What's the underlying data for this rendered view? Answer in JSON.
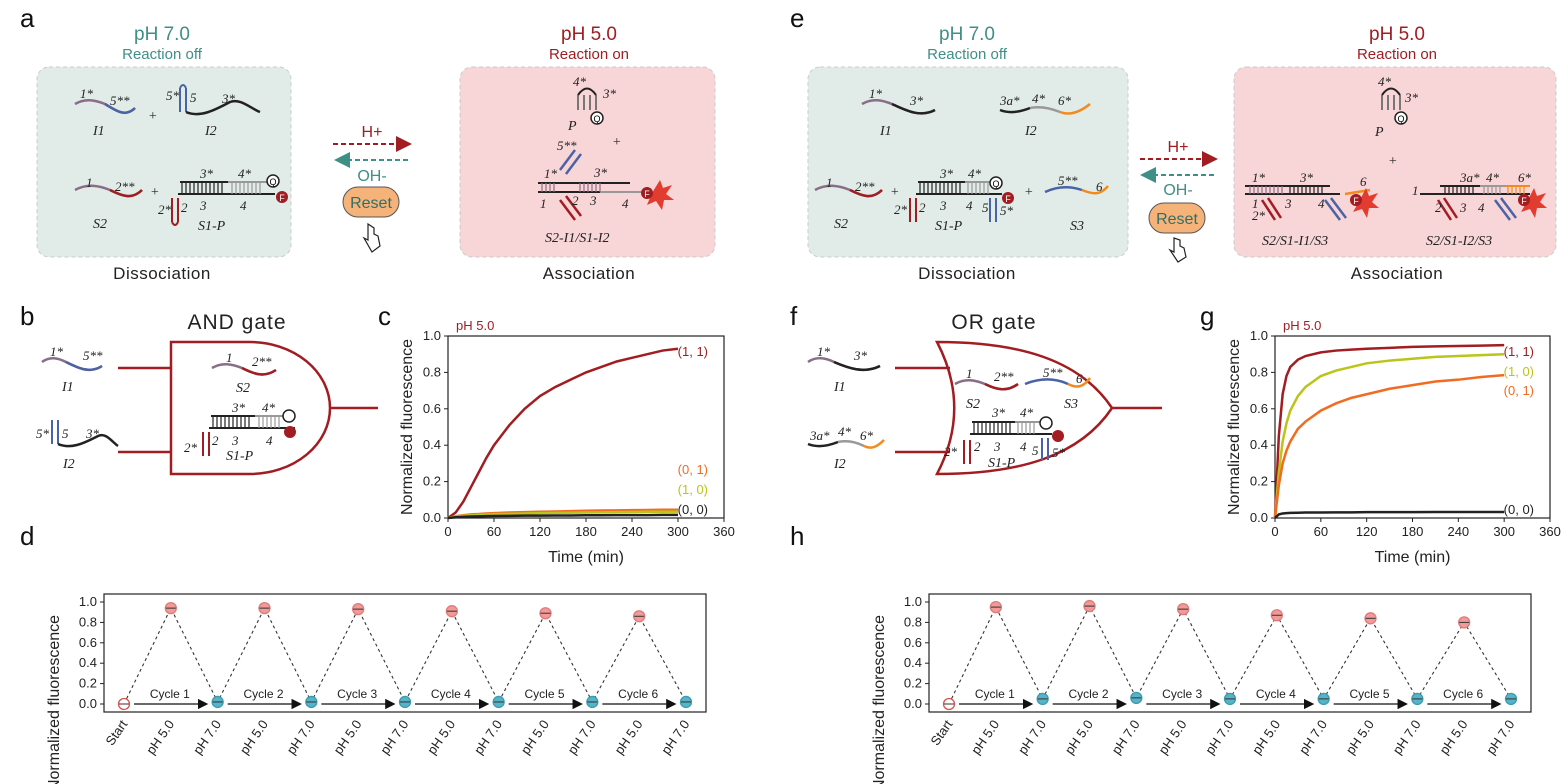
{
  "panels": {
    "a": "a",
    "b": "b",
    "c": "c",
    "d": "d",
    "e": "e",
    "f": "f",
    "g": "g",
    "h": "h"
  },
  "scheme_left": {
    "off_ph": "pH 7.0",
    "off_state": "Reaction off",
    "on_ph": "pH 5.0",
    "on_state": "Reaction on",
    "h_plus": "H+",
    "oh_minus": "OH-",
    "reset": "Reset",
    "dissociation": "Dissociation",
    "association": "Association",
    "strands": {
      "i1": "I1",
      "i2": "I2",
      "s2": "S2",
      "s1p": "S1-P",
      "p": "P",
      "complex": "S2-I1/S1-I2"
    },
    "domains": {
      "d1s": "1*",
      "d5ss": "5**",
      "d5s": "5*",
      "d5": "5",
      "d3s": "3*",
      "d1": "1",
      "d2ss": "2**",
      "d2s": "2*",
      "d2": "2",
      "d3": "3",
      "d4s": "4*",
      "d4": "4",
      "q": "Q",
      "f": "F",
      "plus": "+"
    }
  },
  "scheme_right": {
    "off_ph": "pH 7.0",
    "off_state": "Reaction off",
    "on_ph": "pH 5.0",
    "on_state": "Reaction on",
    "h_plus": "H+",
    "oh_minus": "OH-",
    "reset": "Reset",
    "dissociation": "Dissociation",
    "association": "Association",
    "strands": {
      "i1": "I1",
      "i2": "I2",
      "s2": "S2",
      "s1p": "S1-P",
      "s3": "S3",
      "p": "P",
      "complex1": "S2/S1-I1/S3",
      "complex2": "S2/S1-I2/S3"
    },
    "domains": {
      "d1s": "1*",
      "d3s": "3*",
      "d3as": "3a*",
      "d4s": "4*",
      "d6s": "6*",
      "d1": "1",
      "d2ss": "2**",
      "d2s": "2*",
      "d2": "2",
      "d3": "3",
      "d4": "4",
      "d5": "5",
      "d5s": "5*",
      "d5ss": "5**",
      "d6": "6",
      "q": "Q",
      "f": "F",
      "plus": "+"
    }
  },
  "gate_and": {
    "title": "AND gate",
    "i1": "I1",
    "i2": "I2",
    "s2": "S2",
    "s1p": "S1-P",
    "d1s": "1*",
    "d5ss": "5**",
    "d5s": "5*",
    "d5": "5",
    "d3s": "3*",
    "d1": "1",
    "d2ss": "2**",
    "d4s": "4*",
    "d2s": "2*",
    "d2": "2",
    "d3": "3",
    "d4": "4"
  },
  "gate_or": {
    "title": "OR gate",
    "i1": "I1",
    "i2": "I2",
    "s2": "S2",
    "s3": "S3",
    "s1p": "S1-P",
    "d1s": "1*",
    "d3s": "3*",
    "d3as": "3a*",
    "d4s": "4*",
    "d6s": "6*",
    "d1": "1",
    "d2ss": "2**",
    "d5ss": "5**",
    "d6": "6",
    "d2s": "2*",
    "d2": "2",
    "d3": "3",
    "d4": "4",
    "d5": "5",
    "d5s": "5*"
  },
  "colors": {
    "red": "#a11d21",
    "green": "#3e8f85",
    "teal_box": "#e1ece9",
    "pink_box": "#f8d5d6",
    "series_11": "#a11d21",
    "series_10": "#bcc41a",
    "series_01": "#f26b21",
    "series_00": "#222222",
    "dot_red": "#f19a9a",
    "dot_blue": "#56b4c8"
  },
  "chart_data": [
    {
      "id": "c",
      "type": "line",
      "annotation": "pH 5.0",
      "xlabel": "Time (min)",
      "ylabel": "Normalized fluorescence",
      "xlim": [
        0,
        360
      ],
      "ylim": [
        0,
        1.0
      ],
      "xticks": [
        0,
        60,
        120,
        180,
        240,
        300,
        360
      ],
      "yticks": [
        0.0,
        0.2,
        0.4,
        0.6,
        0.8,
        1.0
      ],
      "x": [
        0,
        10,
        20,
        30,
        40,
        50,
        60,
        80,
        100,
        120,
        140,
        160,
        180,
        200,
        220,
        240,
        260,
        280,
        300
      ],
      "series": [
        {
          "name": "(1, 1)",
          "color": "#a11d21",
          "values": [
            0.0,
            0.03,
            0.09,
            0.17,
            0.25,
            0.33,
            0.4,
            0.51,
            0.6,
            0.67,
            0.72,
            0.76,
            0.8,
            0.83,
            0.86,
            0.88,
            0.9,
            0.92,
            0.93
          ]
        },
        {
          "name": "(0, 1)",
          "color": "#f26b21",
          "values": [
            0.0,
            0.01,
            0.015,
            0.02,
            0.022,
            0.025,
            0.027,
            0.03,
            0.032,
            0.034,
            0.036,
            0.038,
            0.04,
            0.041,
            0.042,
            0.043,
            0.044,
            0.045,
            0.045
          ]
        },
        {
          "name": "(1, 0)",
          "color": "#bcc41a",
          "values": [
            0.0,
            0.008,
            0.012,
            0.015,
            0.017,
            0.019,
            0.021,
            0.023,
            0.025,
            0.027,
            0.028,
            0.029,
            0.03,
            0.031,
            0.032,
            0.033,
            0.034,
            0.034,
            0.035
          ]
        },
        {
          "name": "(0, 0)",
          "color": "#222222",
          "values": [
            0.0,
            0.004,
            0.006,
            0.008,
            0.009,
            0.01,
            0.011,
            0.012,
            0.013,
            0.013,
            0.014,
            0.014,
            0.015,
            0.015,
            0.016,
            0.016,
            0.016,
            0.017,
            0.017
          ]
        }
      ],
      "legend_order": [
        "(1, 1)",
        "(0, 1)",
        "(1, 0)",
        "(0, 0)"
      ]
    },
    {
      "id": "g",
      "type": "line",
      "annotation": "pH 5.0",
      "xlabel": "Time (min)",
      "ylabel": "Normalized fluorescence",
      "xlim": [
        0,
        360
      ],
      "ylim": [
        0,
        1.0
      ],
      "xticks": [
        0,
        60,
        120,
        180,
        240,
        300,
        360
      ],
      "yticks": [
        0.0,
        0.2,
        0.4,
        0.6,
        0.8,
        1.0
      ],
      "x": [
        0,
        5,
        10,
        15,
        20,
        30,
        40,
        60,
        80,
        100,
        120,
        150,
        180,
        210,
        240,
        270,
        300
      ],
      "series": [
        {
          "name": "(1, 1)",
          "color": "#a11d21",
          "values": [
            0.0,
            0.45,
            0.68,
            0.78,
            0.83,
            0.87,
            0.89,
            0.91,
            0.92,
            0.925,
            0.93,
            0.935,
            0.94,
            0.943,
            0.945,
            0.947,
            0.95
          ]
        },
        {
          "name": "(1, 0)",
          "color": "#bcc41a",
          "values": [
            0.0,
            0.25,
            0.42,
            0.52,
            0.59,
            0.67,
            0.72,
            0.78,
            0.81,
            0.83,
            0.85,
            0.865,
            0.875,
            0.885,
            0.89,
            0.895,
            0.9
          ]
        },
        {
          "name": "(0, 1)",
          "color": "#f26b21",
          "values": [
            0.0,
            0.18,
            0.3,
            0.37,
            0.42,
            0.49,
            0.53,
            0.59,
            0.63,
            0.66,
            0.68,
            0.71,
            0.73,
            0.75,
            0.76,
            0.775,
            0.785
          ]
        },
        {
          "name": "(0, 0)",
          "color": "#222222",
          "values": [
            0.0,
            0.02,
            0.025,
            0.027,
            0.028,
            0.029,
            0.03,
            0.03,
            0.031,
            0.031,
            0.032,
            0.032,
            0.032,
            0.033,
            0.033,
            0.033,
            0.033
          ]
        }
      ],
      "legend_order": [
        "(1, 1)",
        "(1, 0)",
        "(0, 1)",
        "(0, 0)"
      ]
    },
    {
      "id": "d",
      "type": "scatter",
      "ylabel": "Normalized fluorescence",
      "ylim": [
        0,
        1.0
      ],
      "yticks": [
        0.0,
        0.2,
        0.4,
        0.6,
        0.8,
        1.0
      ],
      "categories": [
        "Start",
        "pH 5.0",
        "pH 7.0",
        "pH 5.0",
        "pH 7.0",
        "pH 5.0",
        "pH 7.0",
        "pH 5.0",
        "pH 7.0",
        "pH 5.0",
        "pH 7.0",
        "pH 5.0",
        "pH 7.0"
      ],
      "values": [
        0.0,
        0.94,
        0.02,
        0.94,
        0.02,
        0.93,
        0.02,
        0.91,
        0.02,
        0.89,
        0.02,
        0.86,
        0.02
      ],
      "cycles": [
        "Cycle 1",
        "Cycle 2",
        "Cycle 3",
        "Cycle 4",
        "Cycle 5",
        "Cycle 6"
      ]
    },
    {
      "id": "h",
      "type": "scatter",
      "ylabel": "Normalized fluorescence",
      "ylim": [
        0,
        1.0
      ],
      "yticks": [
        0.0,
        0.2,
        0.4,
        0.6,
        0.8,
        1.0
      ],
      "categories": [
        "Start",
        "pH 5.0",
        "pH 7.0",
        "pH 5.0",
        "pH 7.0",
        "pH 5.0",
        "pH 7.0",
        "pH 5.0",
        "pH 7.0",
        "pH 5.0",
        "pH 7.0",
        "pH 5.0",
        "pH 7.0"
      ],
      "values": [
        0.0,
        0.95,
        0.05,
        0.96,
        0.06,
        0.93,
        0.05,
        0.87,
        0.05,
        0.84,
        0.05,
        0.8,
        0.05
      ],
      "cycles": [
        "Cycle 1",
        "Cycle 2",
        "Cycle 3",
        "Cycle 4",
        "Cycle 5",
        "Cycle 6"
      ]
    }
  ]
}
